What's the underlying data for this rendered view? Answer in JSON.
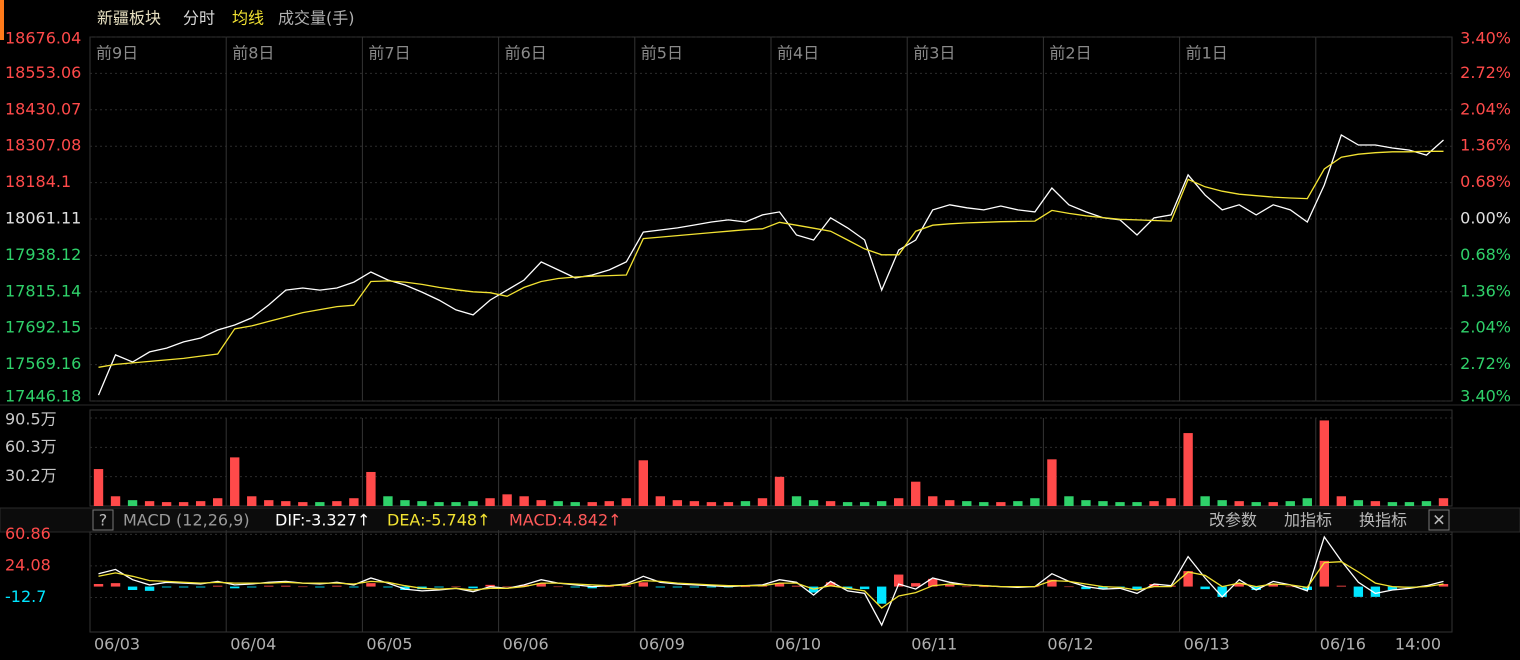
{
  "header": {
    "title": "新疆板块"
  },
  "macd_bar": {
    "help": "?",
    "status": [
      "DIF:-3.327↑",
      "DEA:-5.748↑",
      "MACD:4.842↑"
    ],
    "buttons": [
      "改参数",
      "加指标",
      "换指标"
    ],
    "close": "✕"
  },
  "chart_data": [
    {
      "type": "line",
      "xlim": [
        0,
        80
      ],
      "xticks": [
        {
          "value": 0,
          "label": "06/03"
        },
        {
          "value": 8,
          "label": "06/04"
        },
        {
          "value": 16,
          "label": "06/05"
        },
        {
          "value": 24,
          "label": "06/06"
        },
        {
          "value": 32,
          "label": "06/09"
        },
        {
          "value": 40,
          "label": "06/10"
        },
        {
          "value": 48,
          "label": "06/11"
        },
        {
          "value": 56,
          "label": "06/12"
        },
        {
          "value": 64,
          "label": "06/13"
        },
        {
          "value": 72,
          "label": "06/16"
        },
        {
          "value": 78,
          "label": "14:00"
        }
      ],
      "day_labels": [
        "前9日",
        "前8日",
        "前7日",
        "前6日",
        "前5日",
        "前4日",
        "前3日",
        "前2日",
        "前1日",
        null
      ],
      "ylim": [
        17446.18,
        18676.04
      ],
      "yticks": [
        18676.04,
        18553.06,
        18430.07,
        18307.08,
        18184.1,
        18061.11,
        17938.12,
        17815.14,
        17692.15,
        17569.16,
        17446.18
      ],
      "y2lim": [
        -3.4,
        3.4
      ],
      "y2ticks": [
        {
          "value": 3.4,
          "label": "3.40%"
        },
        {
          "value": 2.72,
          "label": "2.72%"
        },
        {
          "value": 2.04,
          "label": "2.04%"
        },
        {
          "value": 1.36,
          "label": "1.36%"
        },
        {
          "value": 0.68,
          "label": "0.68%"
        },
        {
          "value": 0.0,
          "label": "0.00%"
        },
        {
          "value": -0.68,
          "label": "0.68%"
        },
        {
          "value": -1.36,
          "label": "1.36%"
        },
        {
          "value": -2.04,
          "label": "2.04%"
        },
        {
          "value": -2.72,
          "label": "2.72%"
        },
        {
          "value": -3.4,
          "label": "3.40%"
        }
      ],
      "up_color": "#ff4a4a",
      "flat_color": "#e0e0e0",
      "down_color": "#2fd16a",
      "series": [
        {
          "name": "分时",
          "color": "#ffffff",
          "values": [
            17466,
            17602,
            17578,
            17612,
            17625,
            17646,
            17659,
            17686,
            17703,
            17727,
            17771,
            17821,
            17828,
            17821,
            17828,
            17848,
            17882,
            17855,
            17838,
            17814,
            17787,
            17754,
            17737,
            17787,
            17821,
            17855,
            17916,
            17889,
            17862,
            17872,
            17889,
            17916,
            18017,
            18024,
            18031,
            18041,
            18051,
            18058,
            18051,
            18075,
            18085,
            18007,
            17990,
            18065,
            18031,
            17990,
            17821,
            17956,
            17990,
            18092,
            18109,
            18099,
            18092,
            18105,
            18092,
            18085,
            18166,
            18109,
            18085,
            18065,
            18058,
            18007,
            18065,
            18075,
            18210,
            18142,
            18092,
            18109,
            18075,
            18109,
            18092,
            18051,
            18176,
            18345,
            18311,
            18311,
            18301,
            18294,
            18277,
            18328
          ]
        },
        {
          "name": "均线",
          "color": "#f2e232",
          "values": [
            17560,
            17570,
            17575,
            17580,
            17585,
            17590,
            17598,
            17605,
            17690,
            17700,
            17715,
            17730,
            17745,
            17755,
            17765,
            17770,
            17850,
            17852,
            17848,
            17840,
            17830,
            17822,
            17815,
            17812,
            17800,
            17830,
            17850,
            17860,
            17865,
            17868,
            17870,
            17872,
            17995,
            18000,
            18005,
            18010,
            18015,
            18020,
            18025,
            18028,
            18050,
            18040,
            18030,
            18020,
            17990,
            17960,
            17940,
            17940,
            18020,
            18040,
            18045,
            18048,
            18050,
            18052,
            18053,
            18054,
            18090,
            18080,
            18072,
            18066,
            18060,
            18058,
            18056,
            18054,
            18195,
            18170,
            18155,
            18145,
            18140,
            18135,
            18132,
            18130,
            18230,
            18270,
            18280,
            18285,
            18288,
            18288,
            18290,
            18290
          ]
        }
      ]
    },
    {
      "type": "bar",
      "title": "成交量(手)",
      "ylim": [
        0,
        90.5
      ],
      "yticks": [
        {
          "value": 90.5,
          "label": "90.5万"
        },
        {
          "value": 60.3,
          "label": "60.3万"
        },
        {
          "value": 30.2,
          "label": "30.2万"
        }
      ],
      "up_color": "#ff4a4a",
      "down_color": "#2fd16a",
      "values": [
        38,
        10,
        6,
        5,
        4,
        4,
        5,
        8,
        50,
        10,
        6,
        5,
        4,
        4,
        5,
        8,
        35,
        10,
        6,
        5,
        4,
        4,
        5,
        8,
        12,
        10,
        6,
        5,
        4,
        4,
        5,
        8,
        47,
        10,
        6,
        5,
        4,
        4,
        5,
        8,
        30,
        10,
        6,
        5,
        4,
        4,
        5,
        8,
        25,
        10,
        6,
        5,
        4,
        4,
        5,
        8,
        48,
        10,
        6,
        5,
        4,
        4,
        5,
        8,
        75,
        10,
        6,
        5,
        4,
        4,
        5,
        8,
        88,
        10,
        6,
        5,
        4,
        4,
        5,
        8
      ]
    },
    {
      "type": "line",
      "title": "MACD (12,26,9)",
      "ylim": [
        -53.0,
        66.0
      ],
      "yticks": [
        60.86,
        24.08,
        -12.7
      ],
      "up_color": "#ff4a4a",
      "down_color": "#00e5ff",
      "series": [
        {
          "color": "#ffffff",
          "values": [
            15,
            20,
            8,
            2,
            5,
            4,
            3,
            6,
            2,
            3,
            5,
            6,
            4,
            3,
            5,
            2,
            10,
            4,
            -3,
            -5,
            -4,
            -2,
            -6,
            0,
            -2,
            2,
            8,
            4,
            2,
            0,
            1,
            3,
            12,
            5,
            3,
            2,
            1,
            0,
            1,
            2,
            8,
            5,
            -10,
            6,
            -5,
            -8,
            -45,
            3,
            -3,
            10,
            5,
            2,
            1,
            0,
            -1,
            0,
            15,
            6,
            0,
            -3,
            -2,
            -8,
            3,
            1,
            35,
            10,
            -12,
            8,
            -4,
            6,
            2,
            -5,
            58,
            30,
            5,
            -8,
            -4,
            -2,
            1,
            6
          ]
        },
        {
          "color": "#f2e232",
          "values": [
            12,
            16,
            12,
            7,
            6,
            5,
            4,
            5,
            4,
            4,
            4,
            5,
            4,
            4,
            4,
            3,
            6,
            5,
            1,
            -2,
            -3,
            -2,
            -4,
            -2,
            -2,
            0,
            4,
            4,
            3,
            2,
            1,
            2,
            7,
            6,
            4,
            3,
            2,
            1,
            1,
            1,
            4,
            4,
            -3,
            1,
            -2,
            -5,
            -25,
            -11,
            -7,
            1,
            3,
            2,
            1,
            0,
            0,
            0,
            7,
            6,
            3,
            0,
            -1,
            -4,
            0,
            0,
            17,
            13,
            0,
            4,
            0,
            3,
            2,
            -1,
            28,
            29,
            17,
            4,
            0,
            -1,
            0,
            3
          ]
        },
        {
          "type": "bar",
          "values": [
            3,
            4,
            -4,
            -5,
            -1,
            -1,
            -1,
            1,
            -2,
            -1,
            1,
            1,
            0,
            -1,
            1,
            -1,
            4,
            -1,
            -4,
            -3,
            -1,
            0,
            -2,
            2,
            0,
            2,
            4,
            0,
            -1,
            -2,
            0,
            1,
            5,
            -1,
            -1,
            -1,
            -1,
            -1,
            0,
            1,
            4,
            1,
            -7,
            5,
            -3,
            -3,
            -20,
            14,
            4,
            9,
            2,
            0,
            0,
            0,
            -1,
            0,
            8,
            0,
            -3,
            -3,
            -1,
            -4,
            3,
            1,
            18,
            -3,
            -12,
            4,
            -4,
            3,
            0,
            -4,
            30,
            1,
            -12,
            -12,
            -4,
            -1,
            1,
            3
          ]
        }
      ]
    }
  ]
}
